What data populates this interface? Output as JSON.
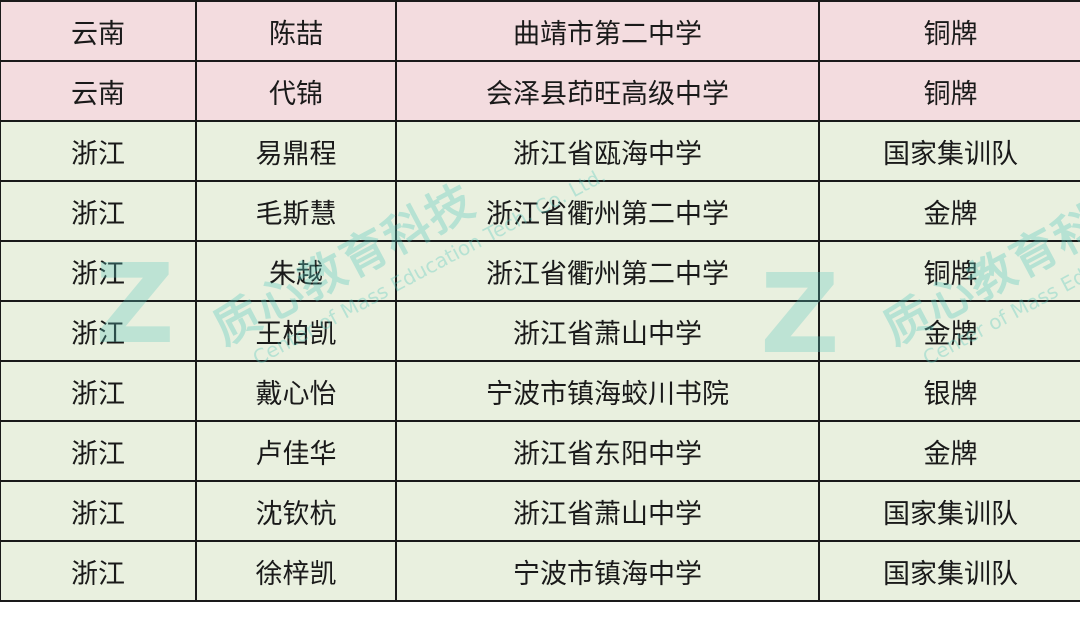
{
  "rows": [
    {
      "province": "云南",
      "name": "陈喆",
      "school": "曲靖市第二中学",
      "award": "铜牌",
      "color": "#f3dcdf"
    },
    {
      "province": "云南",
      "name": "代锦",
      "school": "会泽县茚旺高级中学",
      "award": "铜牌",
      "color": "#f3dcdf"
    },
    {
      "province": "浙江",
      "name": "易鼎程",
      "school": "浙江省瓯海中学",
      "award": "国家集训队",
      "color": "#e9f0df"
    },
    {
      "province": "浙江",
      "name": "毛斯慧",
      "school": "浙江省衢州第二中学",
      "award": "金牌",
      "color": "#e9f0df"
    },
    {
      "province": "浙江",
      "name": "朱越",
      "school": "浙江省衢州第二中学",
      "award": "铜牌",
      "color": "#e9f0df"
    },
    {
      "province": "浙江",
      "name": "王柏凯",
      "school": "浙江省萧山中学",
      "award": "金牌",
      "color": "#e9f0df"
    },
    {
      "province": "浙江",
      "name": "戴心怡",
      "school": "宁波市镇海蛟川书院",
      "award": "银牌",
      "color": "#e9f0df"
    },
    {
      "province": "浙江",
      "name": "卢佳华",
      "school": "浙江省东阳中学",
      "award": "金牌",
      "color": "#e9f0df"
    },
    {
      "province": "浙江",
      "name": "沈钦杭",
      "school": "浙江省萧山中学",
      "award": "国家集训队",
      "color": "#e9f0df"
    },
    {
      "province": "浙江",
      "name": "徐梓凯",
      "school": "宁波市镇海中学",
      "award": "国家集训队",
      "color": "#e9f0df"
    }
  ],
  "watermark": {
    "cn": "质心教育科技",
    "en": "Center of Mass Education Tech. Co. Ltd."
  }
}
